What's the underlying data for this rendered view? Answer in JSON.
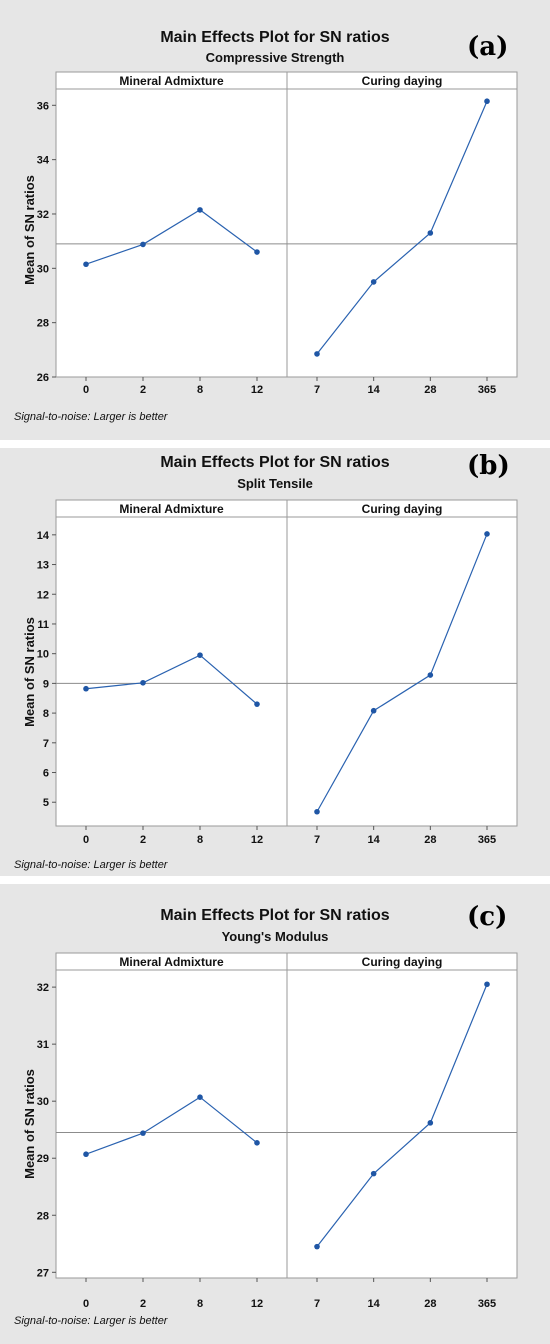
{
  "chart_data": [
    {
      "type": "line",
      "title": "Main Effects Plot for SN ratios",
      "subtitle": "Compressive Strength",
      "letter": "(a)",
      "ylabel": "Mean of SN ratios",
      "ylim": [
        26,
        36.6
      ],
      "yticks": [
        "26",
        "28",
        "30",
        "32",
        "34",
        "36"
      ],
      "reference_mean": 30.9,
      "footnote": "Signal-to-noise: Larger is better",
      "factors": [
        {
          "name": "Mineral Admixture",
          "categories": [
            "0",
            "2",
            "8",
            "12"
          ],
          "values": [
            30.15,
            30.88,
            32.15,
            30.6
          ]
        },
        {
          "name": "Curing daying",
          "categories": [
            "7",
            "14",
            "28",
            "365"
          ],
          "values": [
            26.85,
            29.5,
            31.3,
            36.15
          ]
        }
      ]
    },
    {
      "type": "line",
      "title": "Main Effects Plot for SN ratios",
      "subtitle": "Split Tensile",
      "letter": "(b)",
      "ylabel": "Mean of SN ratios",
      "ylim": [
        4.2,
        14.6
      ],
      "yticks": [
        "5",
        "6",
        "7",
        "8",
        "9",
        "10",
        "11",
        "12",
        "13",
        "14"
      ],
      "reference_mean": 9.0,
      "footnote": "Signal-to-noise: Larger is better",
      "factors": [
        {
          "name": "Mineral Admixture",
          "categories": [
            "0",
            "2",
            "8",
            "12"
          ],
          "values": [
            8.82,
            9.02,
            9.95,
            8.3
          ]
        },
        {
          "name": "Curing daying",
          "categories": [
            "7",
            "14",
            "28",
            "365"
          ],
          "values": [
            4.68,
            8.08,
            9.28,
            14.03
          ]
        }
      ]
    },
    {
      "type": "line",
      "title": "Main Effects Plot for SN ratios",
      "subtitle": "Young's Modulus",
      "letter": "(c)",
      "ylabel": "Mean of SN ratios",
      "ylim": [
        26.9,
        32.3
      ],
      "yticks": [
        "27",
        "28",
        "29",
        "30",
        "31",
        "32"
      ],
      "reference_mean": 29.45,
      "footnote": "Signal-to-noise: Larger is better",
      "factors": [
        {
          "name": "Mineral Admixture",
          "categories": [
            "0",
            "2",
            "8",
            "12"
          ],
          "values": [
            29.07,
            29.44,
            30.07,
            29.27
          ]
        },
        {
          "name": "Curing daying",
          "categories": [
            "7",
            "14",
            "28",
            "365"
          ],
          "values": [
            27.45,
            28.73,
            29.62,
            32.05
          ]
        }
      ]
    }
  ]
}
